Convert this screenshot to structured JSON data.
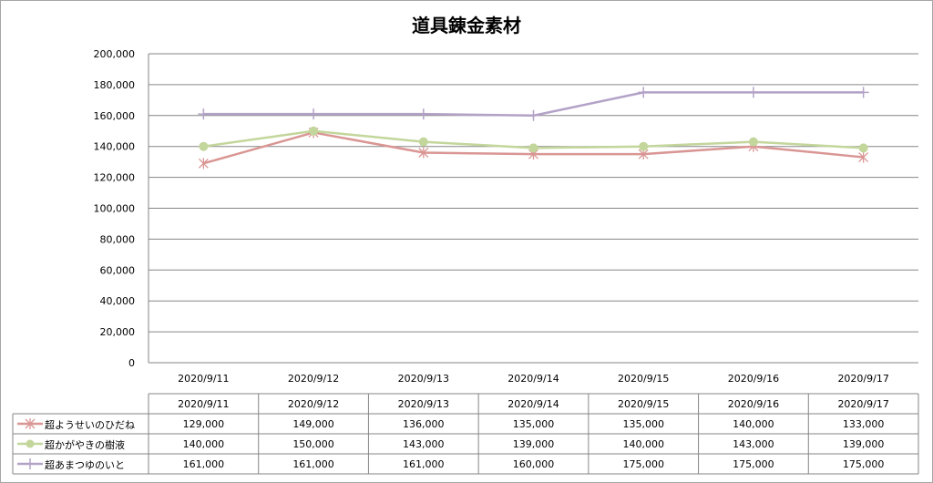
{
  "chart_data": {
    "type": "line",
    "title": "道具錬金素材",
    "categories": [
      "2020/9/11",
      "2020/9/12",
      "2020/9/13",
      "2020/9/14",
      "2020/9/15",
      "2020/9/16",
      "2020/9/17"
    ],
    "ylim": [
      0,
      200000
    ],
    "yticks": [
      0,
      20000,
      40000,
      60000,
      80000,
      100000,
      120000,
      140000,
      160000,
      180000,
      200000
    ],
    "ytick_labels": [
      "0",
      "20,000",
      "40,000",
      "60,000",
      "80,000",
      "100,000",
      "120,000",
      "140,000",
      "160,000",
      "180,000",
      "200,000"
    ],
    "grid": true,
    "legend": "data-table",
    "series": [
      {
        "name": "超ようせいのひだね",
        "color": "#d99694",
        "marker": "asterisk",
        "values": [
          129000,
          149000,
          136000,
          135000,
          135000,
          140000,
          133000
        ],
        "labels": [
          "129,000",
          "149,000",
          "136,000",
          "135,000",
          "135,000",
          "140,000",
          "133,000"
        ]
      },
      {
        "name": "超かがやきの樹液",
        "color": "#c3d69b",
        "marker": "circle",
        "values": [
          140000,
          150000,
          143000,
          139000,
          140000,
          143000,
          139000
        ],
        "labels": [
          "140,000",
          "150,000",
          "143,000",
          "139,000",
          "140,000",
          "143,000",
          "139,000"
        ]
      },
      {
        "name": "超あまつゆのいと",
        "color": "#b3a2c7",
        "marker": "plus",
        "values": [
          161000,
          161000,
          161000,
          160000,
          175000,
          175000,
          175000
        ],
        "labels": [
          "161,000",
          "161,000",
          "161,000",
          "160,000",
          "175,000",
          "175,000",
          "175,000"
        ]
      }
    ]
  }
}
